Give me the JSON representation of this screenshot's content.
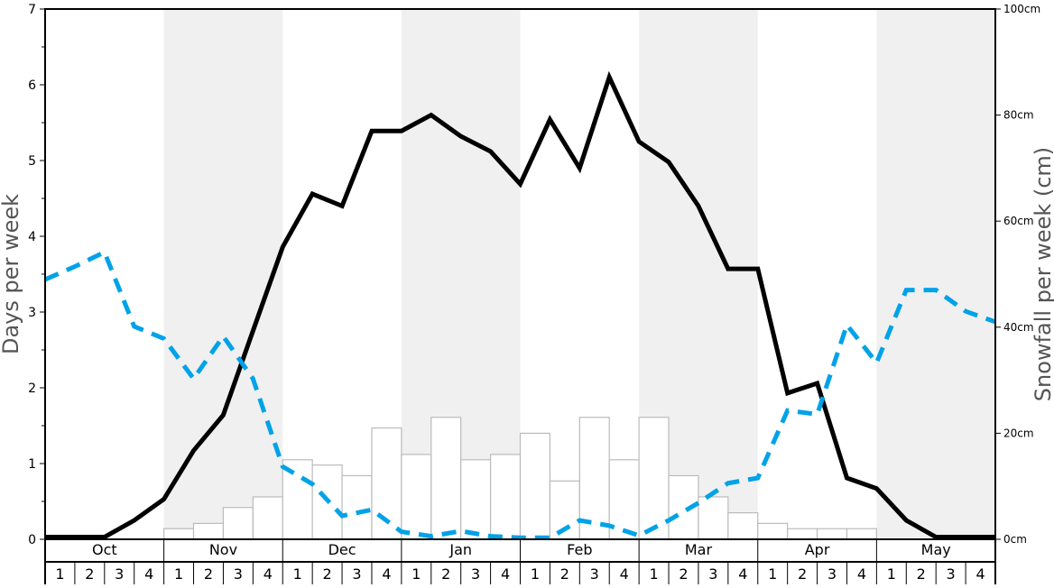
{
  "chart_data": {
    "type": "bar+line",
    "ylabel_left": "Days per week",
    "ylabel_right": "Snowfall per week (cm)",
    "ylim_left": [
      0,
      7
    ],
    "ylim_right": [
      0,
      100
    ],
    "left_ticks": [
      "0",
      "1",
      "2",
      "3",
      "4",
      "5",
      "6",
      "7"
    ],
    "right_ticks": [
      "0cm",
      "20cm",
      "40cm",
      "60cm",
      "80cm",
      "100cm"
    ],
    "right_tick_values": [
      0,
      20,
      40,
      60,
      80,
      100
    ],
    "months": [
      "Oct",
      "Nov",
      "Dec",
      "Jan",
      "Feb",
      "Mar",
      "Apr",
      "May"
    ],
    "weeks": [
      "1",
      "2",
      "3",
      "4"
    ],
    "shaded_months": [
      "Nov",
      "Jan",
      "Mar",
      "May"
    ],
    "colors": {
      "black_line": "#000000",
      "blue_line": "#00a2e8",
      "bars": "#ffffff",
      "bar_border": "#bbbbbb",
      "shade": "#f0f0f0"
    },
    "bars": {
      "axis": "right",
      "values": [
        0,
        0,
        0,
        0,
        2,
        3,
        6,
        8,
        15,
        14,
        12,
        21,
        16,
        23,
        15,
        16,
        20,
        11,
        23,
        15,
        23,
        12,
        8,
        5,
        3,
        2,
        2,
        2,
        0,
        0,
        0,
        0
      ]
    },
    "series": [
      {
        "style": "solid-black",
        "axis": "left",
        "values": [
          0.03,
          0.03,
          0.03,
          0.25,
          0.53,
          1.17,
          1.64,
          2.75,
          3.86,
          4.56,
          4.4,
          5.39,
          5.39,
          5.6,
          5.32,
          5.12,
          4.69,
          5.54,
          4.9,
          6.1,
          5.25,
          4.98,
          4.4,
          3.57,
          3.57,
          1.93,
          2.06,
          0.81,
          0.67,
          0.25,
          0.03,
          0.03,
          0.03
        ]
      },
      {
        "style": "dashed-blue",
        "axis": "left",
        "values": [
          3.43,
          3.6,
          3.79,
          2.81,
          2.65,
          2.12,
          2.68,
          2.12,
          0.96,
          0.73,
          0.31,
          0.39,
          0.1,
          0.04,
          0.11,
          0.04,
          0.02,
          0.02,
          0.25,
          0.18,
          0.05,
          0.25,
          0.48,
          0.74,
          0.81,
          1.7,
          1.65,
          2.83,
          2.33,
          3.29,
          3.29,
          3.01,
          2.87
        ]
      }
    ]
  }
}
